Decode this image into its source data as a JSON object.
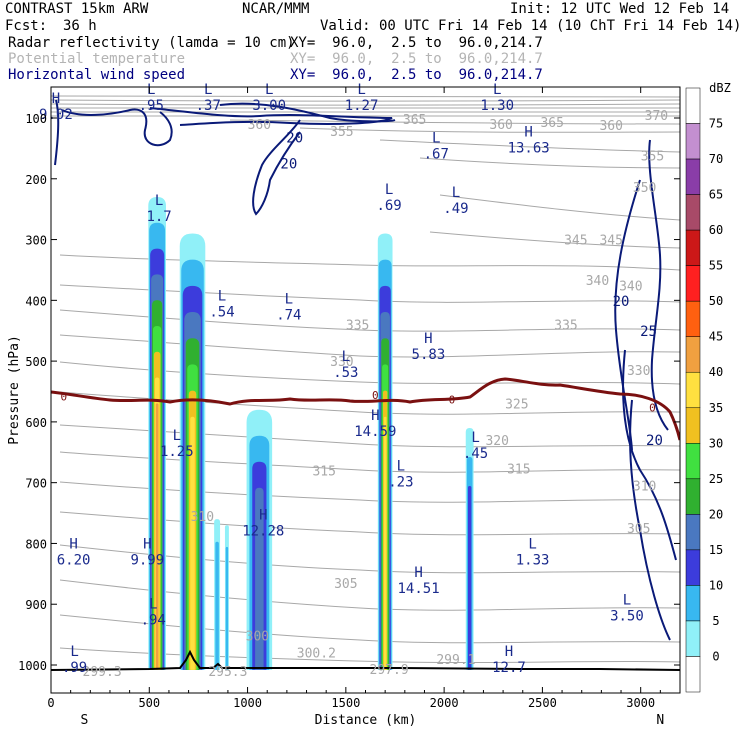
{
  "header": {
    "model": "CONTRAST 15km ARW",
    "org": "NCAR/MMM",
    "init": "Init: 12 UTC Wed 12 Feb 14",
    "fcst_label": "Fcst:",
    "fcst_value": "36 h",
    "valid": "Valid: 00 UTC Fri 14 Feb 14 (10 ChT Fri 14 Feb 14)",
    "fields": [
      {
        "name": "Radar reflectivity (lamda = 10 cm)",
        "xy": "XY=  96.0,  2.5 to  96.0,214.7"
      },
      {
        "name": "Potential temperature",
        "xy": "XY=  96.0,  2.5 to  96.0,214.7"
      },
      {
        "name": "Horizontal wind speed",
        "xy": "XY=  96.0,  2.5 to  96.0,214.7"
      }
    ]
  },
  "colors": {
    "theta": "#a8a8a8",
    "wind": "#0a1a78",
    "freezing": "#7a1010",
    "terrain": "#000000",
    "label_blue": "#1a2a8c"
  },
  "chart_data": {
    "type": "cross-section",
    "title": "Radar reflectivity / Potential temperature / Horizontal wind speed",
    "xlabel": "Distance (km)",
    "ylabel": "Pressure (hPa)",
    "xlim": [
      0,
      3200
    ],
    "ylim": [
      1050,
      60
    ],
    "x_ticks": [
      0,
      500,
      1000,
      1500,
      2000,
      2500,
      3000
    ],
    "y_ticks": [
      100,
      200,
      300,
      400,
      500,
      600,
      700,
      800,
      900,
      1000
    ],
    "x_end_labels": {
      "left": "S",
      "right": "N"
    },
    "colorbar": {
      "unit": "dBZ",
      "levels": [
        75,
        70,
        65,
        60,
        55,
        50,
        45,
        40,
        35,
        30,
        25,
        20,
        15,
        10,
        5,
        0
      ],
      "colors": [
        "#ffffff",
        "#c38fd0",
        "#8a3da8",
        "#a84a68",
        "#cc1818",
        "#ff2020",
        "#ff6010",
        "#f0a040",
        "#ffe040",
        "#f0c020",
        "#40e040",
        "#30b030",
        "#4a78c0",
        "#3c3cdc",
        "#38b8f0",
        "#90f0f8",
        "#ffffff"
      ]
    },
    "cells": [
      {
        "center_km": 540,
        "width_km": 90,
        "top_hpa": 230,
        "max_dbz": 45
      },
      {
        "center_km": 720,
        "width_km": 130,
        "top_hpa": 290,
        "max_dbz": 40
      },
      {
        "center_km": 845,
        "width_km": 30,
        "top_hpa": 760,
        "max_dbz": 10
      },
      {
        "center_km": 895,
        "width_km": 20,
        "top_hpa": 770,
        "max_dbz": 10
      },
      {
        "center_km": 1060,
        "width_km": 130,
        "top_hpa": 580,
        "max_dbz": 20
      },
      {
        "center_km": 1700,
        "width_km": 75,
        "top_hpa": 290,
        "max_dbz": 40
      },
      {
        "center_km": 2130,
        "width_km": 40,
        "top_hpa": 610,
        "max_dbz": 15
      }
    ],
    "theta_labels": [
      {
        "x_km": 1850,
        "p": 110,
        "v": "365"
      },
      {
        "x_km": 2550,
        "p": 115,
        "v": "365"
      },
      {
        "x_km": 2850,
        "p": 120,
        "v": "360"
      },
      {
        "x_km": 2290,
        "p": 118,
        "v": "360"
      },
      {
        "x_km": 1060,
        "p": 118,
        "v": "360"
      },
      {
        "x_km": 1480,
        "p": 130,
        "v": "355"
      },
      {
        "x_km": 3080,
        "p": 103,
        "v": "370"
      },
      {
        "x_km": 3060,
        "p": 170,
        "v": "355"
      },
      {
        "x_km": 3020,
        "p": 222,
        "v": "350"
      },
      {
        "x_km": 2670,
        "p": 308,
        "v": "345"
      },
      {
        "x_km": 2850,
        "p": 308,
        "v": "345"
      },
      {
        "x_km": 2950,
        "p": 384,
        "v": "340"
      },
      {
        "x_km": 2780,
        "p": 375,
        "v": "340"
      },
      {
        "x_km": 2620,
        "p": 448,
        "v": "335"
      },
      {
        "x_km": 1560,
        "p": 448,
        "v": "335"
      },
      {
        "x_km": 1480,
        "p": 508,
        "v": "330"
      },
      {
        "x_km": 2990,
        "p": 523,
        "v": "330"
      },
      {
        "x_km": 2370,
        "p": 578,
        "v": "325"
      },
      {
        "x_km": 2270,
        "p": 638,
        "v": "320"
      },
      {
        "x_km": 1390,
        "p": 688,
        "v": "315"
      },
      {
        "x_km": 2380,
        "p": 685,
        "v": "315"
      },
      {
        "x_km": 3020,
        "p": 713,
        "v": "310"
      },
      {
        "x_km": 770,
        "p": 763,
        "v": "310"
      },
      {
        "x_km": 2990,
        "p": 783,
        "v": "305"
      },
      {
        "x_km": 1500,
        "p": 873,
        "v": "305"
      },
      {
        "x_km": 1050,
        "p": 960,
        "v": "300"
      },
      {
        "x_km": 1350,
        "p": 988,
        "v": "300.2"
      },
      {
        "x_km": 2060,
        "p": 998,
        "v": "299.1"
      },
      {
        "x_km": 1720,
        "p": 1015,
        "v": "297.9"
      },
      {
        "x_km": 900,
        "p": 1018,
        "v": "295.3"
      },
      {
        "x_km": 260,
        "p": 1018,
        "v": "299.3"
      }
    ],
    "wind_labels": [
      {
        "x_km": 1240,
        "p": 140,
        "v": "20"
      },
      {
        "x_km": 1210,
        "p": 183,
        "v": "20"
      },
      {
        "x_km": 2900,
        "p": 409,
        "v": "20"
      },
      {
        "x_km": 3040,
        "p": 459,
        "v": "25"
      },
      {
        "x_km": 3070,
        "p": 638,
        "v": "20"
      }
    ],
    "freezing_labels": [
      {
        "x_km": 65,
        "p": 565,
        "v": "0"
      },
      {
        "x_km": 1650,
        "p": 562,
        "v": "0"
      },
      {
        "x_km": 2040,
        "p": 570,
        "v": "0"
      },
      {
        "x_km": 3060,
        "p": 583,
        "v": "0"
      }
    ],
    "extrema": [
      {
        "t": "H",
        "v": "9.02",
        "x_km": 25,
        "p": 90
      },
      {
        "t": "L",
        "v": ".95",
        "x_km": 510,
        "p": 75
      },
      {
        "t": "L",
        "v": ".37",
        "x_km": 800,
        "p": 75
      },
      {
        "t": "L",
        "v": "3.00",
        "x_km": 1110,
        "p": 75
      },
      {
        "t": "L",
        "v": "1.27",
        "x_km": 1580,
        "p": 75
      },
      {
        "t": "L",
        "v": "1.30",
        "x_km": 2270,
        "p": 75
      },
      {
        "t": "L",
        "v": ".67",
        "x_km": 1960,
        "p": 155
      },
      {
        "t": "H",
        "v": "13.63",
        "x_km": 2430,
        "p": 145
      },
      {
        "t": "L",
        "v": ".69",
        "x_km": 1720,
        "p": 240
      },
      {
        "t": "L",
        "v": ".49",
        "x_km": 2060,
        "p": 245
      },
      {
        "t": "L",
        "v": "1.7",
        "x_km": 550,
        "p": 258
      },
      {
        "t": "L",
        "v": ".54",
        "x_km": 870,
        "p": 415
      },
      {
        "t": "L",
        "v": ".74",
        "x_km": 1210,
        "p": 420
      },
      {
        "t": "H",
        "v": "5.83",
        "x_km": 1920,
        "p": 485
      },
      {
        "t": "L",
        "v": ".53",
        "x_km": 1500,
        "p": 515
      },
      {
        "t": "H",
        "v": "14.59",
        "x_km": 1650,
        "p": 612
      },
      {
        "t": "L",
        "v": "1.25",
        "x_km": 640,
        "p": 645
      },
      {
        "t": "L",
        "v": ".45",
        "x_km": 2160,
        "p": 648
      },
      {
        "t": "L",
        "v": ".23",
        "x_km": 1780,
        "p": 695
      },
      {
        "t": "H",
        "v": "12.28",
        "x_km": 1080,
        "p": 775
      },
      {
        "t": "H",
        "v": "6.20",
        "x_km": 115,
        "p": 823
      },
      {
        "t": "H",
        "v": "9.99",
        "x_km": 490,
        "p": 823
      },
      {
        "t": "L",
        "v": "1.33",
        "x_km": 2450,
        "p": 823
      },
      {
        "t": "H",
        "v": "14.51",
        "x_km": 1870,
        "p": 870
      },
      {
        "t": "L",
        "v": "3.50",
        "x_km": 2930,
        "p": 915
      },
      {
        "t": "L",
        "v": ".94",
        "x_km": 520,
        "p": 922
      },
      {
        "t": "L",
        "v": ".99",
        "x_km": 120,
        "p": 1000
      },
      {
        "t": "H",
        "v": "12.7",
        "x_km": 2330,
        "p": 1000
      }
    ]
  }
}
